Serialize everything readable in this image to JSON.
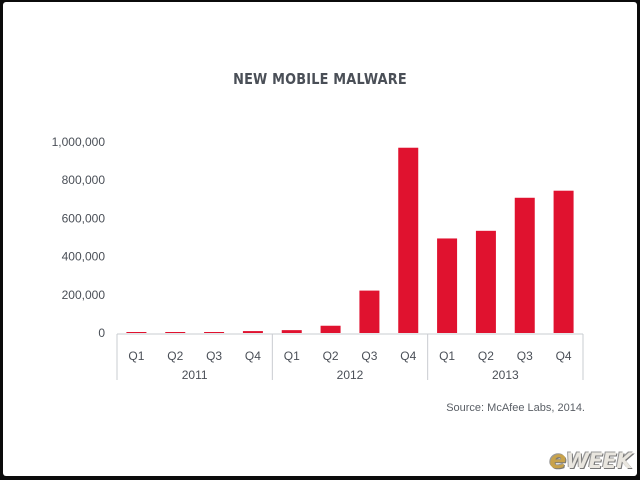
{
  "chart_data": {
    "type": "bar",
    "title": "NEW MOBILE MALWARE",
    "xlabel": "",
    "ylabel": "",
    "categories": [
      "Q1",
      "Q2",
      "Q3",
      "Q4",
      "Q1",
      "Q2",
      "Q3",
      "Q4",
      "Q1",
      "Q2",
      "Q3",
      "Q4"
    ],
    "groups": [
      {
        "label": "2011",
        "categories": [
          "Q1",
          "Q2",
          "Q3",
          "Q4"
        ]
      },
      {
        "label": "2012",
        "categories": [
          "Q1",
          "Q2",
          "Q3",
          "Q4"
        ]
      },
      {
        "label": "2013",
        "categories": [
          "Q1",
          "Q2",
          "Q3",
          "Q4"
        ]
      }
    ],
    "values": [
      4000,
      3000,
      3000,
      10000,
      15000,
      38000,
      222000,
      970000,
      495000,
      535000,
      708000,
      745000
    ],
    "ylim": [
      0,
      1000000
    ],
    "yticks": [
      0,
      200000,
      400000,
      600000,
      800000,
      1000000
    ],
    "ytick_labels": [
      "0",
      "200,000",
      "400,000",
      "600,000",
      "800,000",
      "1,000,000"
    ],
    "grid": false,
    "legend": "none",
    "bar_color": "#e0122f",
    "source": "Source: McAfee Labs, 2014."
  },
  "branding": {
    "logo_mark": "e",
    "logo_text": "WEEK"
  }
}
